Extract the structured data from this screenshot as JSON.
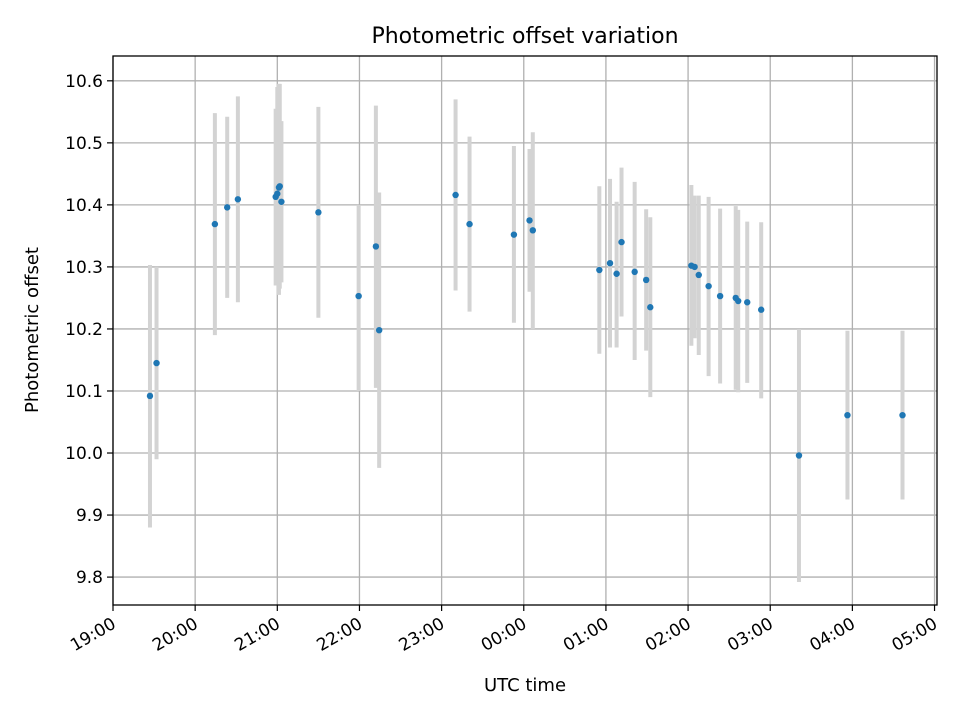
{
  "chart_data": {
    "type": "scatter",
    "title": "Photometric offset variation",
    "xlabel": "UTC time",
    "ylabel": "Photometric offset",
    "grid": true,
    "xlim": [
      19.0,
      29.03
    ],
    "ylim": [
      9.755,
      10.64
    ],
    "x_ticks": [
      {
        "value": 19,
        "label": "19:00"
      },
      {
        "value": 20,
        "label": "20:00"
      },
      {
        "value": 21,
        "label": "21:00"
      },
      {
        "value": 22,
        "label": "22:00"
      },
      {
        "value": 23,
        "label": "23:00"
      },
      {
        "value": 24,
        "label": "00:00"
      },
      {
        "value": 25,
        "label": "01:00"
      },
      {
        "value": 26,
        "label": "02:00"
      },
      {
        "value": 27,
        "label": "03:00"
      },
      {
        "value": 28,
        "label": "04:00"
      },
      {
        "value": 29,
        "label": "05:00"
      }
    ],
    "y_ticks": [
      {
        "value": 9.8,
        "label": "9.8"
      },
      {
        "value": 9.9,
        "label": "9.9"
      },
      {
        "value": 10.0,
        "label": "10.0"
      },
      {
        "value": 10.1,
        "label": "10.1"
      },
      {
        "value": 10.2,
        "label": "10.2"
      },
      {
        "value": 10.3,
        "label": "10.3"
      },
      {
        "value": 10.4,
        "label": "10.4"
      },
      {
        "value": 10.5,
        "label": "10.5"
      },
      {
        "value": 10.6,
        "label": "10.6"
      }
    ],
    "marker_color": "#1f77b4",
    "errorbar_color": "#d3d3d3",
    "points": [
      {
        "x": 19.45,
        "y": 10.092,
        "lo": 9.88,
        "hi": 10.303
      },
      {
        "x": 19.53,
        "y": 10.145,
        "lo": 9.99,
        "hi": 10.3
      },
      {
        "x": 20.24,
        "y": 10.369,
        "lo": 10.19,
        "hi": 10.548
      },
      {
        "x": 20.39,
        "y": 10.396,
        "lo": 10.25,
        "hi": 10.542
      },
      {
        "x": 20.52,
        "y": 10.409,
        "lo": 10.243,
        "hi": 10.575
      },
      {
        "x": 20.98,
        "y": 10.413,
        "lo": 10.27,
        "hi": 10.555
      },
      {
        "x": 21.0,
        "y": 10.418,
        "lo": 10.27,
        "hi": 10.59
      },
      {
        "x": 21.02,
        "y": 10.428,
        "lo": 10.255,
        "hi": 10.595
      },
      {
        "x": 21.03,
        "y": 10.43,
        "lo": 10.265,
        "hi": 10.595
      },
      {
        "x": 21.05,
        "y": 10.405,
        "lo": 10.275,
        "hi": 10.535
      },
      {
        "x": 21.5,
        "y": 10.388,
        "lo": 10.218,
        "hi": 10.558
      },
      {
        "x": 21.99,
        "y": 10.253,
        "lo": 10.1,
        "hi": 10.4
      },
      {
        "x": 22.2,
        "y": 10.333,
        "lo": 10.105,
        "hi": 10.56
      },
      {
        "x": 22.24,
        "y": 10.198,
        "lo": 9.976,
        "hi": 10.42
      },
      {
        "x": 23.17,
        "y": 10.416,
        "lo": 10.262,
        "hi": 10.57
      },
      {
        "x": 23.34,
        "y": 10.369,
        "lo": 10.228,
        "hi": 10.51
      },
      {
        "x": 23.88,
        "y": 10.352,
        "lo": 10.21,
        "hi": 10.495
      },
      {
        "x": 24.07,
        "y": 10.375,
        "lo": 10.26,
        "hi": 10.49
      },
      {
        "x": 24.11,
        "y": 10.359,
        "lo": 10.2,
        "hi": 10.517
      },
      {
        "x": 24.92,
        "y": 10.295,
        "lo": 10.16,
        "hi": 10.43
      },
      {
        "x": 25.05,
        "y": 10.306,
        "lo": 10.17,
        "hi": 10.442
      },
      {
        "x": 25.13,
        "y": 10.289,
        "lo": 10.17,
        "hi": 10.405
      },
      {
        "x": 25.19,
        "y": 10.34,
        "lo": 10.22,
        "hi": 10.46
      },
      {
        "x": 25.35,
        "y": 10.292,
        "lo": 10.15,
        "hi": 10.437
      },
      {
        "x": 25.49,
        "y": 10.279,
        "lo": 10.165,
        "hi": 10.393
      },
      {
        "x": 25.54,
        "y": 10.235,
        "lo": 10.09,
        "hi": 10.38
      },
      {
        "x": 26.04,
        "y": 10.302,
        "lo": 10.173,
        "hi": 10.432
      },
      {
        "x": 26.08,
        "y": 10.3,
        "lo": 10.185,
        "hi": 10.415
      },
      {
        "x": 26.13,
        "y": 10.287,
        "lo": 10.158,
        "hi": 10.415
      },
      {
        "x": 26.25,
        "y": 10.269,
        "lo": 10.124,
        "hi": 10.413
      },
      {
        "x": 26.39,
        "y": 10.253,
        "lo": 10.112,
        "hi": 10.394
      },
      {
        "x": 26.58,
        "y": 10.25,
        "lo": 10.102,
        "hi": 10.398
      },
      {
        "x": 26.61,
        "y": 10.245,
        "lo": 10.098,
        "hi": 10.392
      },
      {
        "x": 26.72,
        "y": 10.243,
        "lo": 10.113,
        "hi": 10.373
      },
      {
        "x": 26.89,
        "y": 10.231,
        "lo": 10.088,
        "hi": 10.372
      },
      {
        "x": 27.35,
        "y": 9.996,
        "lo": 9.792,
        "hi": 10.2
      },
      {
        "x": 27.94,
        "y": 10.061,
        "lo": 9.925,
        "hi": 10.197
      },
      {
        "x": 28.61,
        "y": 10.061,
        "lo": 9.925,
        "hi": 10.197
      }
    ]
  }
}
